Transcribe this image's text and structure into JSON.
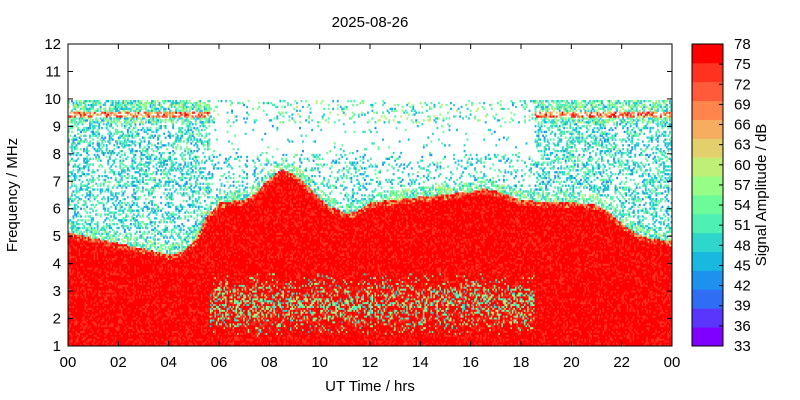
{
  "chart_data": {
    "type": "heatmap",
    "title": "2025-08-26",
    "xlabel": "UT Time / hrs",
    "ylabel": "Frequency / MHz",
    "xlim": [
      0,
      24
    ],
    "ylim": [
      1,
      12
    ],
    "x_ticks": [
      "00",
      "02",
      "04",
      "06",
      "08",
      "10",
      "12",
      "14",
      "16",
      "18",
      "20",
      "22",
      "00"
    ],
    "y_ticks": [
      "1",
      "2",
      "3",
      "4",
      "5",
      "6",
      "7",
      "8",
      "9",
      "10",
      "11",
      "12"
    ],
    "colorbar": {
      "label": "Signal Amplitude / dB",
      "range": [
        33,
        78
      ],
      "ticks": [
        "78",
        "75",
        "72",
        "69",
        "66",
        "63",
        "60",
        "57",
        "54",
        "51",
        "48",
        "45",
        "42",
        "39",
        "36",
        "33"
      ],
      "colors": [
        "#7f00ff",
        "#5a35fb",
        "#2f6ef4",
        "#1e90ee",
        "#19b8e0",
        "#2fd6cc",
        "#4ef0b4",
        "#6dfb9a",
        "#96fe86",
        "#c0ef78",
        "#e3d06d",
        "#f7ad5f",
        "#ff854d",
        "#ff5a3a",
        "#ff3220",
        "#ff0000"
      ]
    },
    "grid": false,
    "legend": "right colorbar",
    "series": [
      {
        "hours": [
          0,
          1,
          2,
          3,
          4,
          4.5,
          5,
          5.5,
          6,
          7,
          7.5,
          8,
          8.5,
          9,
          9.5,
          10,
          10.5,
          11,
          11.5,
          12,
          13,
          14,
          15,
          16,
          16.5,
          17,
          18,
          19,
          20,
          21,
          21.5,
          22,
          22.5,
          23,
          24
        ],
        "strong_echo_top_mhz": [
          5.1,
          4.9,
          4.7,
          4.5,
          4.3,
          4.4,
          4.8,
          5.7,
          6.2,
          6.3,
          6.6,
          7.1,
          7.4,
          7.2,
          6.8,
          6.3,
          6.0,
          5.8,
          5.9,
          6.2,
          6.3,
          6.4,
          6.5,
          6.6,
          6.7,
          6.6,
          6.3,
          6.2,
          6.2,
          6.1,
          5.8,
          5.4,
          5.1,
          4.9,
          4.8
        ]
      }
    ],
    "interference_band_mhz": [
      9.1,
      9.9
    ],
    "interference_band_daytime_limit_mhz": 8.0
  }
}
